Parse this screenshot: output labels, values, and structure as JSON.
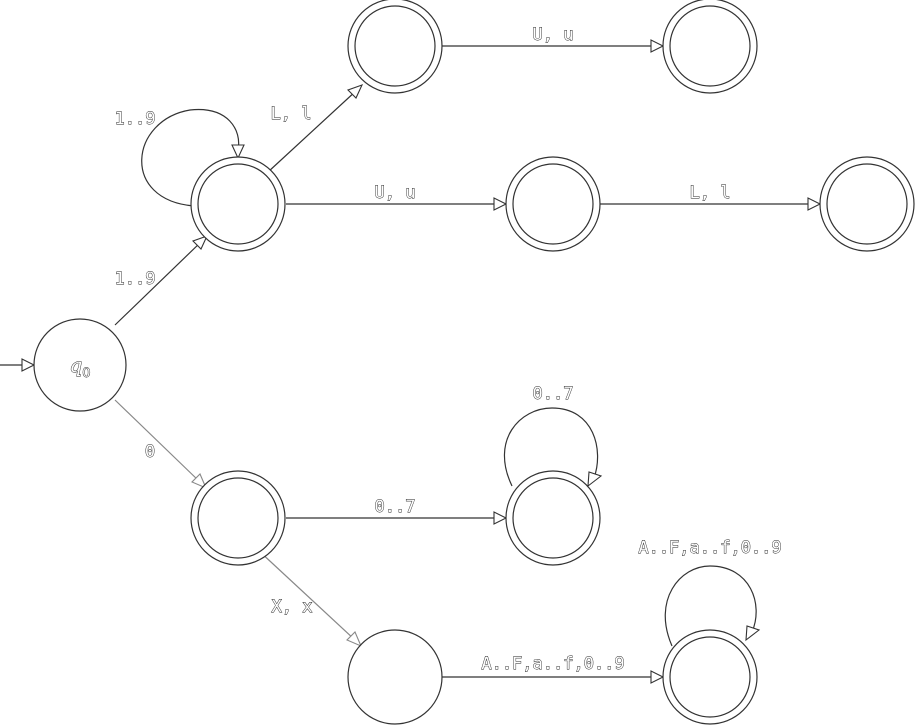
{
  "start_state": {
    "name": "q",
    "subscript": "0"
  },
  "transitions": {
    "start_to_dec": "1..9",
    "dec_loop": "1..9",
    "dec_to_l": "L, l",
    "l_to_lu": "U, u",
    "dec_to_u": "U, u",
    "u_to_ul": "L, l",
    "start_to_zero": "0",
    "zero_to_oct": "0..7",
    "oct_loop": "0..7",
    "zero_to_x": "X, x",
    "x_to_hex": "A..F,a..f,0..9",
    "hex_loop": "A..F,a..f,0..9"
  }
}
